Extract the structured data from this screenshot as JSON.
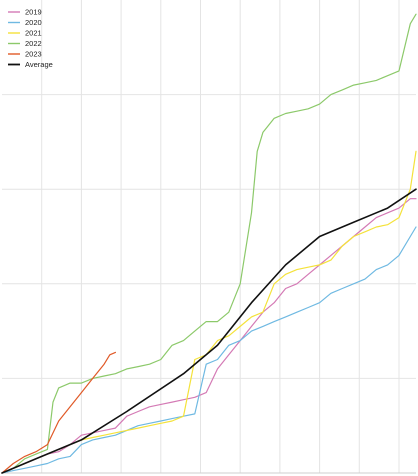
{
  "chart_data": {
    "type": "line",
    "title": "",
    "xlabel": "",
    "ylabel": "",
    "xlim": [
      0,
      365
    ],
    "ylim": [
      0,
      100
    ],
    "grid": true,
    "x_grid_values": [
      35,
      70,
      105,
      140,
      175,
      210,
      245,
      280,
      315,
      350
    ],
    "y_grid_values": [
      20,
      40,
      60,
      80
    ],
    "legend_position": "top-left",
    "series": [
      {
        "name": "2019",
        "color": "#d47ab5",
        "points": [
          [
            0,
            0
          ],
          [
            10,
            1
          ],
          [
            20,
            2
          ],
          [
            30,
            3
          ],
          [
            40,
            4
          ],
          [
            50,
            4.5
          ],
          [
            60,
            6
          ],
          [
            70,
            8
          ],
          [
            80,
            8.5
          ],
          [
            90,
            9
          ],
          [
            100,
            9.5
          ],
          [
            110,
            12
          ],
          [
            120,
            13
          ],
          [
            130,
            14
          ],
          [
            140,
            14.5
          ],
          [
            150,
            15
          ],
          [
            160,
            15.5
          ],
          [
            170,
            16
          ],
          [
            180,
            17
          ],
          [
            190,
            22
          ],
          [
            200,
            25
          ],
          [
            210,
            28
          ],
          [
            220,
            31
          ],
          [
            230,
            34
          ],
          [
            240,
            36
          ],
          [
            250,
            39
          ],
          [
            260,
            40
          ],
          [
            270,
            42
          ],
          [
            280,
            44
          ],
          [
            290,
            46
          ],
          [
            300,
            48
          ],
          [
            310,
            50
          ],
          [
            320,
            52
          ],
          [
            330,
            54
          ],
          [
            340,
            55
          ],
          [
            350,
            56
          ],
          [
            360,
            58
          ],
          [
            365,
            58
          ]
        ]
      },
      {
        "name": "2020",
        "color": "#6fb9e2",
        "points": [
          [
            0,
            0
          ],
          [
            10,
            0.5
          ],
          [
            20,
            1
          ],
          [
            30,
            1.5
          ],
          [
            40,
            2
          ],
          [
            50,
            3
          ],
          [
            60,
            3.5
          ],
          [
            70,
            6
          ],
          [
            80,
            7
          ],
          [
            90,
            7.5
          ],
          [
            100,
            8
          ],
          [
            110,
            9
          ],
          [
            120,
            10
          ],
          [
            130,
            10.5
          ],
          [
            140,
            11
          ],
          [
            150,
            11.5
          ],
          [
            160,
            12
          ],
          [
            170,
            12.5
          ],
          [
            180,
            23
          ],
          [
            190,
            24
          ],
          [
            200,
            27
          ],
          [
            210,
            28
          ],
          [
            220,
            30
          ],
          [
            230,
            31
          ],
          [
            240,
            32
          ],
          [
            250,
            33
          ],
          [
            260,
            34
          ],
          [
            270,
            35
          ],
          [
            280,
            36
          ],
          [
            290,
            38
          ],
          [
            300,
            39
          ],
          [
            310,
            40
          ],
          [
            320,
            41
          ],
          [
            330,
            43
          ],
          [
            340,
            44
          ],
          [
            350,
            46
          ],
          [
            360,
            50
          ],
          [
            365,
            52
          ]
        ]
      },
      {
        "name": "2021",
        "color": "#f4e23a",
        "points": [
          [
            0,
            0
          ],
          [
            10,
            1
          ],
          [
            20,
            2
          ],
          [
            30,
            3
          ],
          [
            40,
            4
          ],
          [
            50,
            5
          ],
          [
            60,
            6
          ],
          [
            70,
            7
          ],
          [
            80,
            7.5
          ],
          [
            90,
            8
          ],
          [
            100,
            8.5
          ],
          [
            110,
            9
          ],
          [
            120,
            9.5
          ],
          [
            130,
            10
          ],
          [
            140,
            10.5
          ],
          [
            150,
            11
          ],
          [
            160,
            12
          ],
          [
            170,
            24
          ],
          [
            180,
            25
          ],
          [
            190,
            28
          ],
          [
            200,
            29
          ],
          [
            210,
            31
          ],
          [
            220,
            33
          ],
          [
            230,
            34
          ],
          [
            240,
            40
          ],
          [
            250,
            42
          ],
          [
            260,
            43
          ],
          [
            270,
            43.5
          ],
          [
            280,
            44
          ],
          [
            290,
            45
          ],
          [
            300,
            48
          ],
          [
            310,
            50
          ],
          [
            320,
            51
          ],
          [
            330,
            52
          ],
          [
            340,
            52.5
          ],
          [
            350,
            54
          ],
          [
            360,
            60
          ],
          [
            365,
            68
          ]
        ]
      },
      {
        "name": "2022",
        "color": "#8cc96a",
        "points": [
          [
            0,
            0
          ],
          [
            10,
            1
          ],
          [
            20,
            3
          ],
          [
            30,
            4
          ],
          [
            40,
            5
          ],
          [
            45,
            15
          ],
          [
            50,
            18
          ],
          [
            60,
            19
          ],
          [
            70,
            19
          ],
          [
            80,
            20
          ],
          [
            90,
            20.5
          ],
          [
            100,
            21
          ],
          [
            110,
            22
          ],
          [
            120,
            22.5
          ],
          [
            130,
            23
          ],
          [
            140,
            24
          ],
          [
            150,
            27
          ],
          [
            160,
            28
          ],
          [
            170,
            30
          ],
          [
            180,
            32
          ],
          [
            190,
            32
          ],
          [
            200,
            34
          ],
          [
            210,
            40
          ],
          [
            220,
            55
          ],
          [
            225,
            68
          ],
          [
            230,
            72
          ],
          [
            240,
            75
          ],
          [
            250,
            76
          ],
          [
            260,
            76.5
          ],
          [
            270,
            77
          ],
          [
            280,
            78
          ],
          [
            290,
            80
          ],
          [
            300,
            81
          ],
          [
            310,
            82
          ],
          [
            320,
            82.5
          ],
          [
            330,
            83
          ],
          [
            340,
            84
          ],
          [
            350,
            85
          ],
          [
            360,
            95
          ],
          [
            365,
            97
          ]
        ]
      },
      {
        "name": "2023",
        "color": "#e05a28",
        "points": [
          [
            0,
            0
          ],
          [
            10,
            2
          ],
          [
            20,
            3.5
          ],
          [
            30,
            4.5
          ],
          [
            40,
            6
          ],
          [
            50,
            11
          ],
          [
            60,
            14
          ],
          [
            70,
            17
          ],
          [
            80,
            20
          ],
          [
            90,
            23
          ],
          [
            95,
            25
          ],
          [
            100,
            25.5
          ]
        ]
      },
      {
        "name": "Average",
        "color": "#111111",
        "points": [
          [
            0,
            0
          ],
          [
            30,
            3
          ],
          [
            70,
            7
          ],
          [
            110,
            13
          ],
          [
            160,
            21
          ],
          [
            190,
            27
          ],
          [
            220,
            36
          ],
          [
            250,
            44
          ],
          [
            280,
            50
          ],
          [
            310,
            53
          ],
          [
            340,
            56
          ],
          [
            365,
            60
          ]
        ]
      }
    ]
  }
}
